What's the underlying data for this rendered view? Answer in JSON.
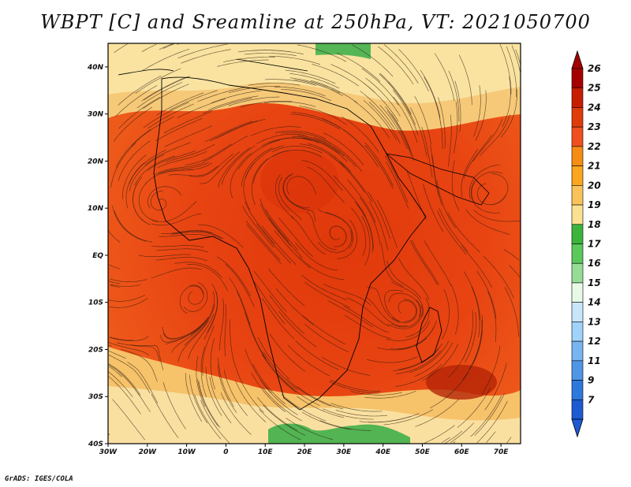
{
  "title": "WBPT [C] and Sreamline at 250hPa, VT: 2021050700",
  "credit": "GrADS: IGES/COLA",
  "map": {
    "lon_labels": [
      "30W",
      "20W",
      "10W",
      "0",
      "10E",
      "20E",
      "30E",
      "40E",
      "50E",
      "60E",
      "70E"
    ],
    "lat_labels": [
      "40N",
      "30N",
      "20N",
      "10N",
      "EQ",
      "10S",
      "20S",
      "30S",
      "40S"
    ],
    "lon_range": [
      -30,
      75
    ],
    "lat_range": [
      -40,
      45
    ]
  },
  "colorbar": {
    "labels": [
      "26",
      "25",
      "24",
      "23",
      "22",
      "21",
      "20",
      "19",
      "18",
      "17",
      "16",
      "15",
      "14",
      "13",
      "12",
      "11",
      "9",
      "7"
    ],
    "colors": [
      "#a50000",
      "#c81e00",
      "#e03c0a",
      "#f0501e",
      "#f58c14",
      "#faa61e",
      "#fac35a",
      "#fae191",
      "#3cb43c",
      "#5ac85a",
      "#96dc96",
      "#e6fae6",
      "#c8e6fa",
      "#a0d2fa",
      "#78b4f0",
      "#5096e6",
      "#2d78dc",
      "#1e5ad2"
    ]
  }
}
